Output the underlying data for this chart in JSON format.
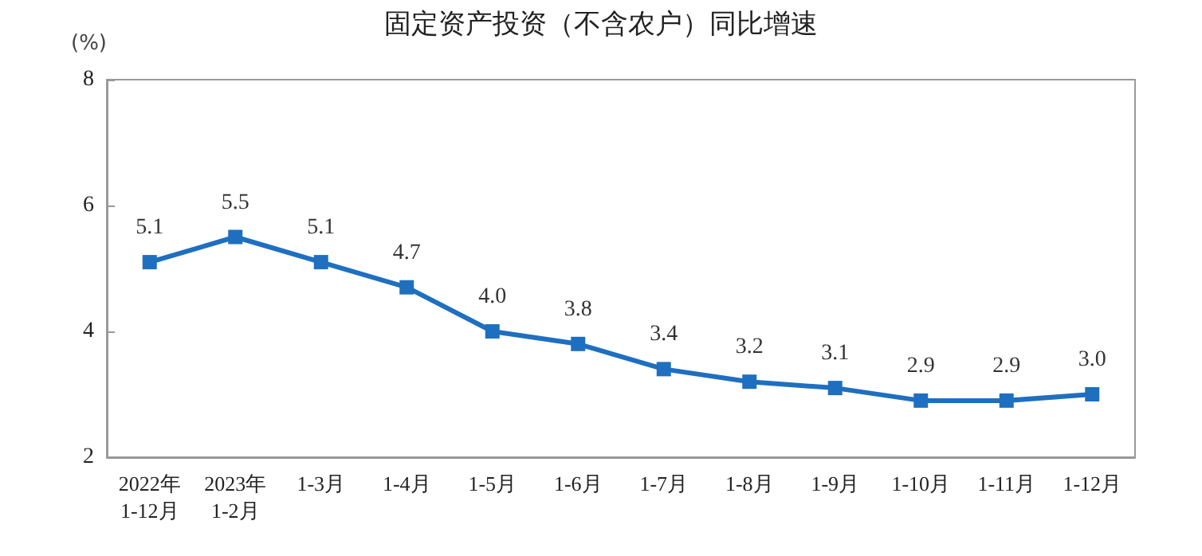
{
  "chart_data": {
    "type": "line",
    "title": "固定资产投资（不含农户）同比增速",
    "ylabel": "(%)",
    "categories": [
      "2022年\n1-12月",
      "2023年\n1-2月",
      "1-3月",
      "1-4月",
      "1-5月",
      "1-6月",
      "1-7月",
      "1-8月",
      "1-9月",
      "1-10月",
      "1-11月",
      "1-12月"
    ],
    "series": [
      {
        "color": "#1f6fc0",
        "values": [
          5.1,
          5.5,
          5.1,
          4.7,
          4.0,
          3.8,
          3.4,
          3.2,
          3.1,
          2.9,
          2.9,
          3.0
        ]
      }
    ],
    "value_labels": [
      "5.1",
      "5.5",
      "5.1",
      "4.7",
      "4.0",
      "3.8",
      "3.4",
      "3.2",
      "3.1",
      "2.9",
      "2.9",
      "3.0"
    ],
    "ylim": [
      2,
      8
    ],
    "yticks": [
      2,
      4,
      6,
      8
    ],
    "marker": "square"
  }
}
